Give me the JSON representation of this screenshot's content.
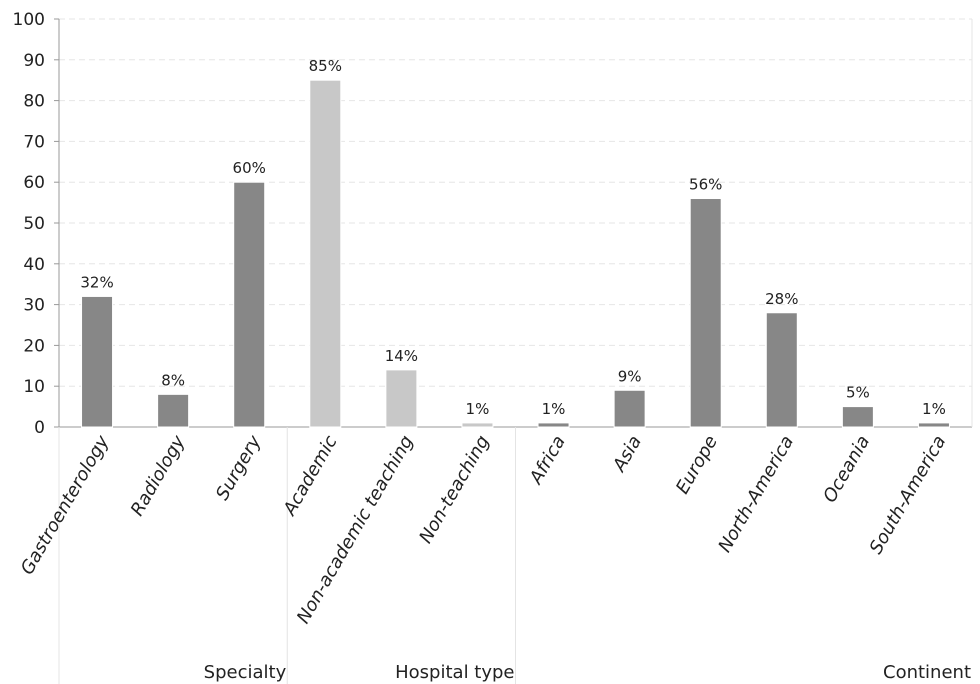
{
  "chart_data": {
    "type": "bar",
    "ylim": [
      0,
      100
    ],
    "yticks": [
      "0",
      "10",
      "20",
      "30",
      "40",
      "50",
      "60",
      "70",
      "80",
      "90",
      "100"
    ],
    "categories": [
      "Gastroenterology",
      "Radiology",
      "Surgery",
      "Academic",
      "Non-academic teaching",
      "Non-teaching",
      "Africa",
      "Asia",
      "Europe",
      "North-America",
      "Oceania",
      "South-America"
    ],
    "values": [
      32,
      8,
      60,
      85,
      14,
      1,
      1,
      9,
      56,
      28,
      5,
      1
    ],
    "data_labels": [
      "32%",
      "8%",
      "60%",
      "85%",
      "14%",
      "1%",
      "1%",
      "9%",
      "56%",
      "28%",
      "5%",
      "1%"
    ],
    "groups": [
      {
        "name": "Specialty",
        "start": 0,
        "end": 2,
        "color": "#878787"
      },
      {
        "name": "Hospital type",
        "start": 3,
        "end": 5,
        "color": "#c8c8c8"
      },
      {
        "name": "Continent",
        "start": 6,
        "end": 11,
        "color": "#878787"
      }
    ],
    "grid": true,
    "legend": "none"
  }
}
